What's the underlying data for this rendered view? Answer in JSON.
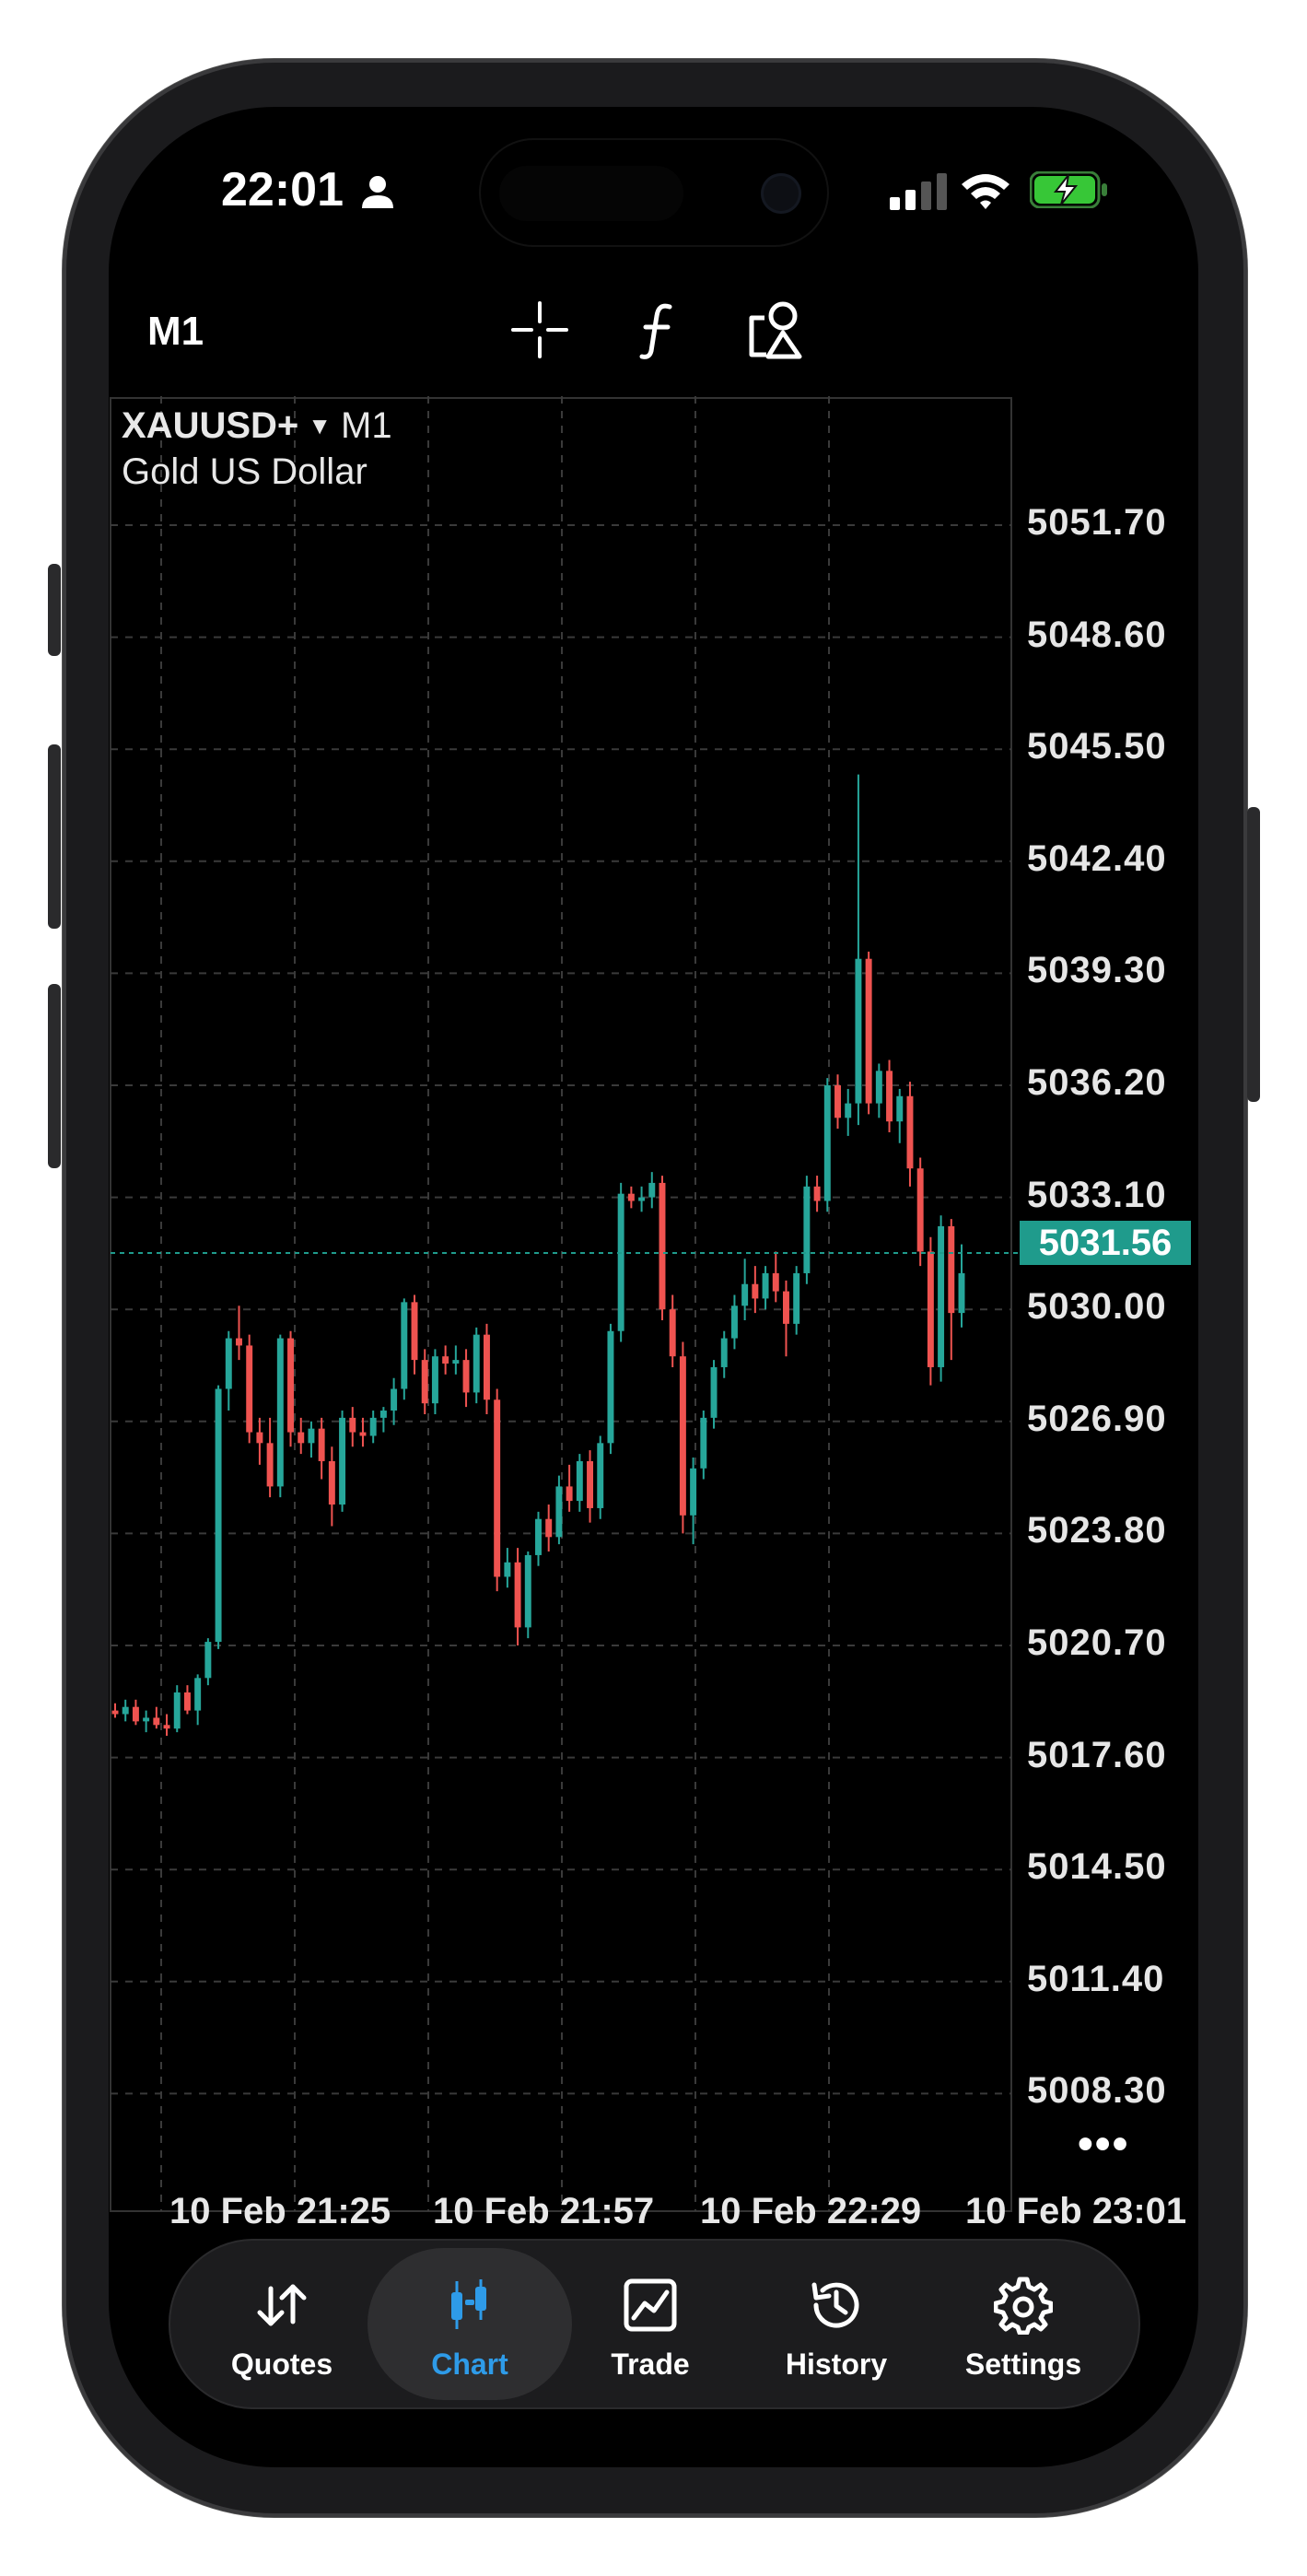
{
  "status": {
    "time": "22:01"
  },
  "toolbar": {
    "timeframe": "M1"
  },
  "chart": {
    "symbol": "XAUUSD+",
    "timeframe": "M1",
    "description": "Gold US Dollar",
    "current_price": "5031.56",
    "price_axis": [
      "5051.70",
      "5048.60",
      "5045.50",
      "5042.40",
      "5039.30",
      "5036.20",
      "5033.10",
      "5030.00",
      "5026.90",
      "5023.80",
      "5020.70",
      "5017.60",
      "5014.50",
      "5011.40",
      "5008.30"
    ],
    "time_axis": [
      "10 Feb 21:25",
      "10 Feb 21:57",
      "10 Feb 22:29",
      "10 Feb 23:01"
    ],
    "more": "•••",
    "colors": {
      "bull": "#26a69a",
      "bear": "#ef5350",
      "price_line": "#1f9b8c"
    }
  },
  "chart_data": {
    "type": "candlestick",
    "ylim": [
      5005.0,
      5054.0
    ],
    "up_color": "#26a69a",
    "down_color": "#ef5350",
    "candles": [
      [
        5018.9,
        5019.1,
        5018.7,
        5018.8
      ],
      [
        5018.8,
        5019.2,
        5018.6,
        5019.0
      ],
      [
        5019.0,
        5019.2,
        5018.5,
        5018.6
      ],
      [
        5018.6,
        5018.9,
        5018.3,
        5018.7
      ],
      [
        5018.7,
        5019.0,
        5018.4,
        5018.5
      ],
      [
        5018.5,
        5018.8,
        5018.2,
        5018.4
      ],
      [
        5018.4,
        5019.6,
        5018.3,
        5019.4
      ],
      [
        5019.4,
        5019.6,
        5018.8,
        5018.9
      ],
      [
        5018.9,
        5019.9,
        5018.5,
        5019.8
      ],
      [
        5019.8,
        5020.9,
        5019.6,
        5020.8
      ],
      [
        5020.8,
        5027.9,
        5020.6,
        5027.8
      ],
      [
        5027.8,
        5029.4,
        5027.2,
        5029.2
      ],
      [
        5029.2,
        5030.1,
        5028.6,
        5029.0
      ],
      [
        5029.0,
        5029.3,
        5026.3,
        5026.6
      ],
      [
        5026.6,
        5027.0,
        5025.7,
        5026.3
      ],
      [
        5026.3,
        5027.0,
        5024.8,
        5025.1
      ],
      [
        5025.1,
        5029.3,
        5024.8,
        5029.2
      ],
      [
        5029.2,
        5029.4,
        5026.2,
        5026.6
      ],
      [
        5026.6,
        5027.0,
        5026.0,
        5026.3
      ],
      [
        5026.3,
        5026.9,
        5025.9,
        5026.7
      ],
      [
        5026.7,
        5027.0,
        5025.3,
        5025.8
      ],
      [
        5025.8,
        5026.2,
        5024.0,
        5024.6
      ],
      [
        5024.6,
        5027.2,
        5024.4,
        5027.0
      ],
      [
        5027.0,
        5027.3,
        5026.2,
        5026.6
      ],
      [
        5026.6,
        5027.0,
        5026.2,
        5026.5
      ],
      [
        5026.5,
        5027.2,
        5026.3,
        5027.0
      ],
      [
        5027.0,
        5027.3,
        5026.6,
        5027.2
      ],
      [
        5027.2,
        5028.1,
        5026.8,
        5027.8
      ],
      [
        5027.8,
        5030.3,
        5027.5,
        5030.2
      ],
      [
        5030.2,
        5030.4,
        5028.2,
        5028.6
      ],
      [
        5028.6,
        5028.9,
        5027.1,
        5027.4
      ],
      [
        5027.4,
        5028.9,
        5027.1,
        5028.7
      ],
      [
        5028.7,
        5029.0,
        5028.2,
        5028.5
      ],
      [
        5028.5,
        5029.0,
        5028.2,
        5028.6
      ],
      [
        5028.6,
        5028.9,
        5027.3,
        5027.7
      ],
      [
        5027.7,
        5029.5,
        5027.4,
        5029.3
      ],
      [
        5029.3,
        5029.6,
        5027.1,
        5027.5
      ],
      [
        5027.5,
        5027.8,
        5022.2,
        5022.6
      ],
      [
        5022.6,
        5023.4,
        5022.3,
        5023.0
      ],
      [
        5023.0,
        5023.4,
        5020.7,
        5021.2
      ],
      [
        5021.2,
        5023.3,
        5020.9,
        5023.2
      ],
      [
        5023.2,
        5024.4,
        5022.9,
        5024.2
      ],
      [
        5024.2,
        5024.6,
        5023.3,
        5023.7
      ],
      [
        5023.7,
        5025.4,
        5023.5,
        5025.1
      ],
      [
        5025.1,
        5025.7,
        5024.4,
        5024.7
      ],
      [
        5024.7,
        5026.0,
        5024.4,
        5025.8
      ],
      [
        5025.8,
        5026.1,
        5024.1,
        5024.5
      ],
      [
        5024.5,
        5026.5,
        5024.2,
        5026.3
      ],
      [
        5026.3,
        5029.6,
        5026.0,
        5029.4
      ],
      [
        5029.4,
        5033.5,
        5029.1,
        5033.2
      ],
      [
        5033.2,
        5033.4,
        5032.8,
        5033.0
      ],
      [
        5033.0,
        5033.4,
        5032.7,
        5033.1
      ],
      [
        5033.1,
        5033.8,
        5032.8,
        5033.5
      ],
      [
        5033.5,
        5033.7,
        5029.7,
        5030.0
      ],
      [
        5030.0,
        5030.4,
        5028.4,
        5028.7
      ],
      [
        5028.7,
        5029.1,
        5023.8,
        5024.3
      ],
      [
        5024.3,
        5025.9,
        5023.5,
        5025.6
      ],
      [
        5025.6,
        5027.2,
        5025.3,
        5027.0
      ],
      [
        5027.0,
        5028.6,
        5026.7,
        5028.4
      ],
      [
        5028.4,
        5029.4,
        5028.1,
        5029.2
      ],
      [
        5029.2,
        5030.4,
        5028.9,
        5030.1
      ],
      [
        5030.1,
        5031.4,
        5029.7,
        5030.7
      ],
      [
        5030.7,
        5031.2,
        5029.9,
        5030.3
      ],
      [
        5030.3,
        5031.2,
        5030.0,
        5031.0
      ],
      [
        5031.0,
        5031.6,
        5030.2,
        5030.5
      ],
      [
        5030.5,
        5030.8,
        5028.7,
        5029.6
      ],
      [
        5029.6,
        5031.2,
        5029.3,
        5031.0
      ],
      [
        5031.0,
        5033.7,
        5030.7,
        5033.4
      ],
      [
        5033.4,
        5033.7,
        5032.7,
        5033.0
      ],
      [
        5033.0,
        5036.4,
        5032.7,
        5036.2
      ],
      [
        5036.2,
        5036.5,
        5035.0,
        5035.3
      ],
      [
        5035.3,
        5036.1,
        5034.8,
        5035.7
      ],
      [
        5035.7,
        5044.8,
        5035.1,
        5039.7
      ],
      [
        5039.7,
        5039.9,
        5035.4,
        5035.7
      ],
      [
        5035.7,
        5036.8,
        5035.3,
        5036.6
      ],
      [
        5036.6,
        5036.9,
        5034.9,
        5035.2
      ],
      [
        5035.2,
        5036.1,
        5034.6,
        5035.9
      ],
      [
        5035.9,
        5036.3,
        5033.4,
        5033.9
      ],
      [
        5033.9,
        5034.2,
        5031.2,
        5031.6
      ],
      [
        5031.6,
        5032.0,
        5027.9,
        5028.4
      ],
      [
        5028.4,
        5032.6,
        5028.0,
        5032.3
      ],
      [
        5032.3,
        5032.5,
        5028.6,
        5029.9
      ],
      [
        5029.9,
        5031.8,
        5029.5,
        5031.0
      ]
    ]
  },
  "tabbar": {
    "tabs": [
      {
        "label": "Quotes"
      },
      {
        "label": "Chart"
      },
      {
        "label": "Trade"
      },
      {
        "label": "History"
      },
      {
        "label": "Settings"
      }
    ]
  }
}
